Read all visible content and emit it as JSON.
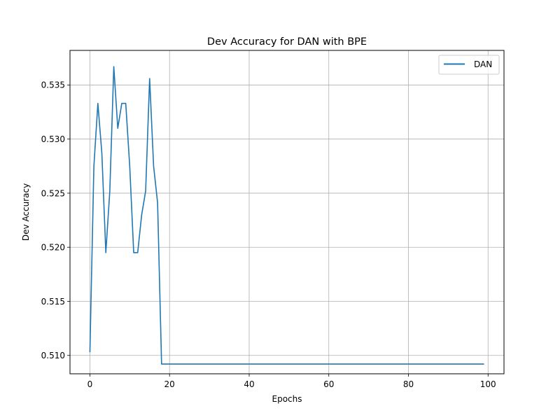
{
  "chart_data": {
    "type": "line",
    "title": "Dev Accuracy for DAN with BPE",
    "xlabel": "Epochs",
    "ylabel": "Dev Accuracy",
    "xlim": [
      -5,
      104
    ],
    "ylim": [
      0.5083,
      0.5382
    ],
    "x_ticks": [
      0,
      20,
      40,
      60,
      80,
      100
    ],
    "x_tick_labels": [
      "0",
      "20",
      "40",
      "60",
      "80",
      "100"
    ],
    "y_ticks": [
      0.51,
      0.515,
      0.52,
      0.525,
      0.53,
      0.535
    ],
    "y_tick_labels": [
      "0.510",
      "0.515",
      "0.520",
      "0.525",
      "0.530",
      "0.535"
    ],
    "grid": true,
    "legend_position": "top-right",
    "series": [
      {
        "name": "DAN",
        "color": "#1f77b4",
        "points": [
          [
            0,
            0.5103
          ],
          [
            1,
            0.5275
          ],
          [
            2,
            0.5333
          ],
          [
            3,
            0.5287
          ],
          [
            4,
            0.5195
          ],
          [
            5,
            0.5252
          ],
          [
            6,
            0.5367
          ],
          [
            7,
            0.531
          ],
          [
            8,
            0.5333
          ],
          [
            9,
            0.5333
          ],
          [
            10,
            0.5275
          ],
          [
            11,
            0.5195
          ],
          [
            12,
            0.5195
          ],
          [
            13,
            0.523
          ],
          [
            14,
            0.5252
          ],
          [
            15,
            0.5356
          ],
          [
            16,
            0.5275
          ],
          [
            17,
            0.5241
          ],
          [
            18,
            0.5092
          ],
          [
            99,
            0.5092
          ]
        ]
      }
    ]
  }
}
